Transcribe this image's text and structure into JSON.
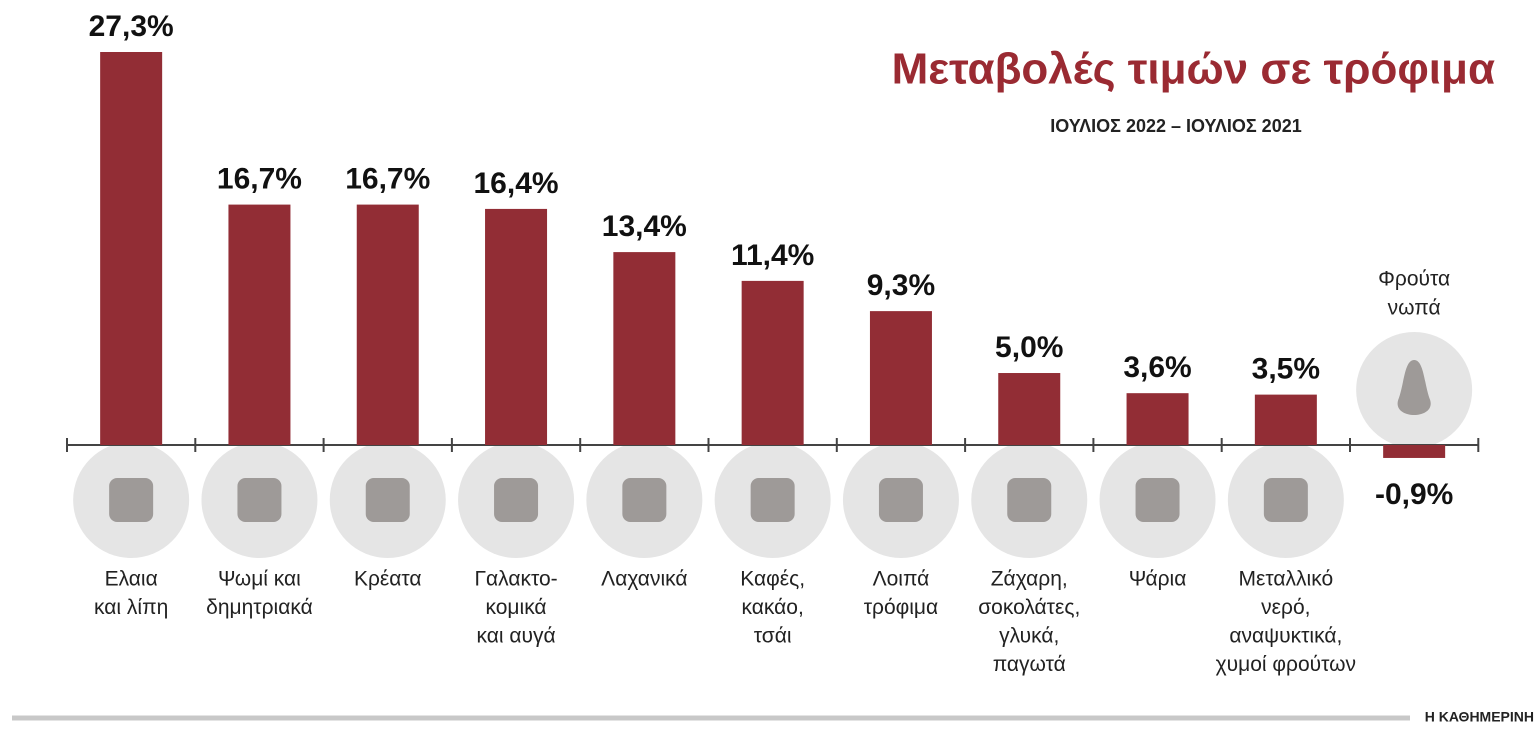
{
  "chart_data": {
    "type": "bar",
    "title": "Μεταβολές τιμών σε τρόφιμα",
    "subtitle": "ΙΟΥΛΙΟΣ 2022 – ΙΟΥΛΙΟΣ 2021",
    "source": "Η ΚΑΘΗΜΕΡΙΝΗ",
    "categories": [
      [
        "Ελαια",
        "και λίπη"
      ],
      [
        "Ψωμί και",
        "δημητριακά"
      ],
      [
        "Κρέατα"
      ],
      [
        "Γαλακτο-",
        "κομικά",
        "και αυγά"
      ],
      [
        "Λαχανικά"
      ],
      [
        "Καφές,",
        "κακάο,",
        "τσάι"
      ],
      [
        "Λοιπά",
        "τρόφιμα"
      ],
      [
        "Ζάχαρη,",
        "σοκολάτες,",
        "γλυκά,",
        "παγωτά"
      ],
      [
        "Ψάρια"
      ],
      [
        "Μεταλλικό",
        "νερό,",
        "αναψυκτικά,",
        "χυμοί φρούτων"
      ],
      [
        "Φρούτα",
        "νωπά"
      ]
    ],
    "values": [
      27.3,
      16.7,
      16.7,
      16.4,
      13.4,
      11.4,
      9.3,
      5.0,
      3.6,
      3.5,
      -0.9
    ],
    "value_labels": [
      "27,3%",
      "16,7%",
      "16,7%",
      "16,4%",
      "13,4%",
      "11,4%",
      "9,3%",
      "5,0%",
      "3,6%",
      "3,5%",
      "-0,9%"
    ],
    "color": "#922d35"
  }
}
